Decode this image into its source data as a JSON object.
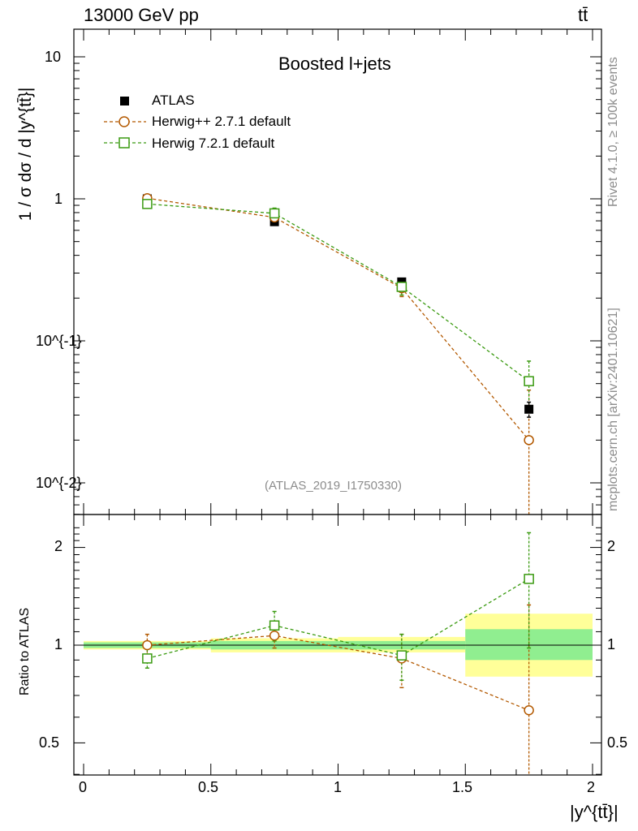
{
  "header": {
    "left": "13000 GeV pp",
    "right": "tt̄"
  },
  "side": {
    "rivet": "Rivet 4.1.0, ≥ 100k events",
    "mcplots": "mcplots.cern.ch [arXiv:2401.10621]"
  },
  "colors": {
    "data": "#000000",
    "herwigpp": "#b35900",
    "herwig7": "#3a9a10",
    "band_inner": "#90ee90",
    "band_outer": "#ffff99",
    "watermark": "#8c8c8c"
  },
  "chart_data": [
    {
      "type": "scatter",
      "title": "Boosted l+jets",
      "analysis_id": "(ATLAS_2019_I1750330)",
      "ylabel": "1 / σ dσ / d |y^{tt̄}|",
      "xlabel": "|y^{tt̄}|",
      "yscale": "log",
      "ylim": [
        0.006,
        16
      ],
      "xlim": [
        -0.05,
        2.03
      ],
      "ytick_labels": [
        "10^{-2}",
        "10^{-1}",
        "1",
        "10"
      ],
      "bins": [
        [
          0,
          0.5
        ],
        [
          0.5,
          1.0
        ],
        [
          1.0,
          1.5
        ],
        [
          1.5,
          2.0
        ]
      ],
      "x": [
        0.25,
        0.75,
        1.25,
        1.75
      ],
      "legend": [
        "ATLAS",
        "Herwig++ 2.7.1 default",
        "Herwig 7.2.1 default"
      ],
      "series": [
        {
          "name": "ATLAS",
          "marker": "filled-square",
          "values": [
            1.0,
            0.69,
            0.26,
            0.033
          ],
          "err": [
            0.03,
            0.02,
            0.01,
            0.004
          ]
        },
        {
          "name": "Herwig++ 2.7.1 default",
          "marker": "open-circle",
          "values": [
            1.01,
            0.74,
            0.235,
            0.02
          ],
          "err": [
            0.06,
            0.05,
            0.03,
            0.025
          ]
        },
        {
          "name": "Herwig 7.2.1 default",
          "marker": "open-square",
          "values": [
            0.92,
            0.79,
            0.24,
            0.052
          ],
          "err": [
            0.06,
            0.07,
            0.03,
            0.02
          ]
        }
      ]
    },
    {
      "type": "scatter",
      "ylabel": "Ratio to ATLAS",
      "yscale": "log",
      "ylim": [
        0.38,
        2.5
      ],
      "ytick_labels": [
        "0.5",
        "1",
        "2"
      ],
      "x": [
        0.25,
        0.75,
        1.25,
        1.75
      ],
      "band_inner": [
        [
          0.98,
          1.02
        ],
        [
          0.97,
          1.03
        ],
        [
          0.97,
          1.03
        ],
        [
          0.9,
          1.12
        ]
      ],
      "band_outer": [
        [
          0.97,
          1.03
        ],
        [
          0.95,
          1.05
        ],
        [
          0.95,
          1.06
        ],
        [
          0.8,
          1.25
        ]
      ],
      "series": [
        {
          "name": "Herwig++ 2.7.1 default",
          "values": [
            1.0,
            1.07,
            0.91,
            0.63
          ],
          "err": [
            0.08,
            0.09,
            0.17,
            0.7
          ]
        },
        {
          "name": "Herwig 7.2.1 default",
          "values": [
            0.91,
            1.15,
            0.93,
            1.6
          ],
          "err": [
            0.06,
            0.12,
            0.15,
            0.62
          ]
        }
      ]
    }
  ]
}
